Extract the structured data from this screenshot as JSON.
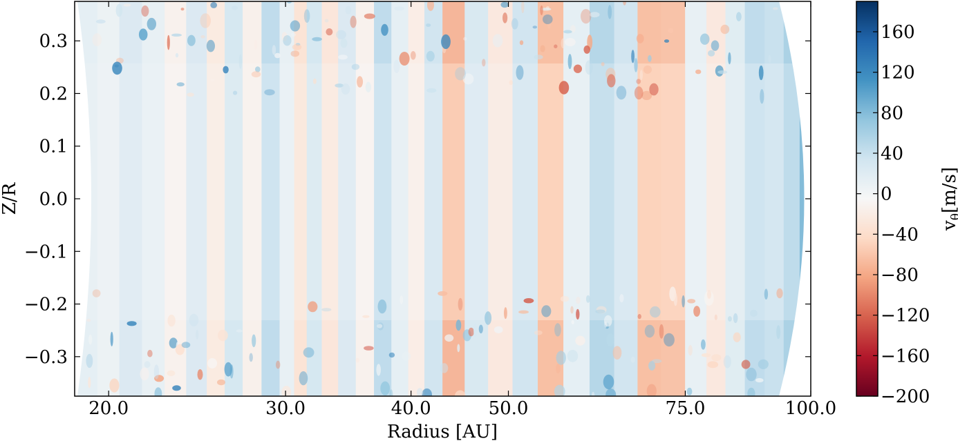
{
  "chart_data": {
    "type": "heatmap",
    "xlabel": "Radius [AU]",
    "ylabel": "Z/R",
    "x_scale": "log",
    "xlim": [
      18.5,
      100.0
    ],
    "ylim": [
      -0.375,
      0.375
    ],
    "x_ticks": [
      {
        "value": 20.0,
        "label": "20.0"
      },
      {
        "value": 30.0,
        "label": "30.0"
      },
      {
        "value": 40.0,
        "label": "40.0"
      },
      {
        "value": 50.0,
        "label": "50.0"
      },
      {
        "value": 75.0,
        "label": "75.0"
      },
      {
        "value": 100.0,
        "label": "100.0"
      }
    ],
    "y_ticks": [
      {
        "value": 0.3,
        "label": "0.3"
      },
      {
        "value": 0.2,
        "label": "0.2"
      },
      {
        "value": 0.1,
        "label": "0.1"
      },
      {
        "value": 0.0,
        "label": "0.0"
      },
      {
        "value": -0.1,
        "label": "−0.1"
      },
      {
        "value": -0.2,
        "label": "−0.2"
      },
      {
        "value": -0.3,
        "label": "−0.3"
      }
    ],
    "colorbar": {
      "label": "vθ[m/s]",
      "label_main": "v",
      "label_sub": "θ",
      "label_unit": "[m/s]",
      "range": [
        -200,
        190
      ],
      "colormap": "RdBu",
      "ticks": [
        {
          "value": 160,
          "label": "160"
        },
        {
          "value": 120,
          "label": "120"
        },
        {
          "value": 80,
          "label": "80"
        },
        {
          "value": 40,
          "label": "40"
        },
        {
          "value": 0,
          "label": "0"
        },
        {
          "value": -40,
          "label": "−40"
        },
        {
          "value": -80,
          "label": "−80"
        },
        {
          "value": -120,
          "label": "−120"
        },
        {
          "value": -160,
          "label": "−160"
        },
        {
          "value": -200,
          "label": "−200"
        }
      ],
      "colors": [
        "#67001f",
        "#b2182b",
        "#d6604d",
        "#f4a582",
        "#fddbc7",
        "#f7f7f7",
        "#d1e5f0",
        "#92c5de",
        "#4393c3",
        "#2166ac",
        "#053061"
      ]
    },
    "bands": [
      {
        "r": 19.0,
        "v": 10
      },
      {
        "r": 20.0,
        "v": 5
      },
      {
        "r": 21.0,
        "v": 18
      },
      {
        "r": 22.2,
        "v": 8
      },
      {
        "r": 23.3,
        "v": -10
      },
      {
        "r": 24.5,
        "v": 18
      },
      {
        "r": 25.6,
        "v": -18
      },
      {
        "r": 26.6,
        "v": 22
      },
      {
        "r": 27.8,
        "v": -12
      },
      {
        "r": 29.0,
        "v": 35
      },
      {
        "r": 30.2,
        "v": 8
      },
      {
        "r": 31.0,
        "v": -25
      },
      {
        "r": 32.0,
        "v": 22
      },
      {
        "r": 33.2,
        "v": -22
      },
      {
        "r": 34.5,
        "v": 18
      },
      {
        "r": 36.0,
        "v": -10
      },
      {
        "r": 37.5,
        "v": 35
      },
      {
        "r": 39.0,
        "v": 10
      },
      {
        "r": 40.5,
        "v": -15
      },
      {
        "r": 42.0,
        "v": 25
      },
      {
        "r": 44.0,
        "v": -55
      },
      {
        "r": 46.5,
        "v": 20
      },
      {
        "r": 49.0,
        "v": -20
      },
      {
        "r": 52.0,
        "v": 25
      },
      {
        "r": 55.0,
        "v": -50
      },
      {
        "r": 58.5,
        "v": 10
      },
      {
        "r": 62.0,
        "v": 40
      },
      {
        "r": 65.5,
        "v": 25
      },
      {
        "r": 69.0,
        "v": -50
      },
      {
        "r": 73.0,
        "v": -48
      },
      {
        "r": 77.0,
        "v": 8
      },
      {
        "r": 80.5,
        "v": -20
      },
      {
        "r": 84.0,
        "v": 15
      },
      {
        "r": 88.0,
        "v": 35
      },
      {
        "r": 92.0,
        "v": 30
      },
      {
        "r": 96.0,
        "v": 45
      },
      {
        "r": 99.0,
        "v": 80
      }
    ]
  }
}
